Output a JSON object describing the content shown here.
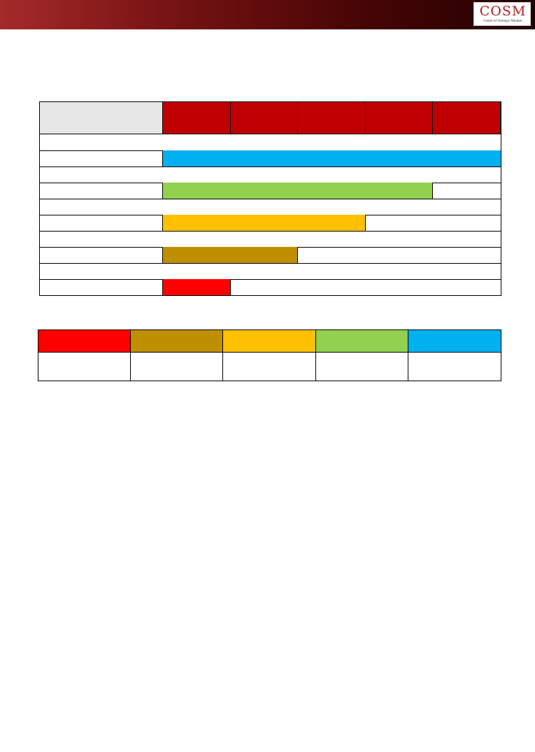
{
  "header": {
    "logo_text": "COSM",
    "logo_subtitle": "Centre of Strategic Mindset"
  },
  "matrix": {
    "header_color": "#c00000",
    "label_bg": "#e7e7e7",
    "columns": 5,
    "bars": [
      {
        "color": "#00b0f0",
        "level": 5
      },
      {
        "color": "#92d050",
        "level": 4
      },
      {
        "color": "#ffc000",
        "level": 3
      },
      {
        "color": "#bf8f00",
        "level": 2
      },
      {
        "color": "#ff0000",
        "level": 1
      }
    ]
  },
  "legend": {
    "colors": [
      "#ff0000",
      "#bf8f00",
      "#ffc000",
      "#92d050",
      "#00b0f0"
    ]
  }
}
